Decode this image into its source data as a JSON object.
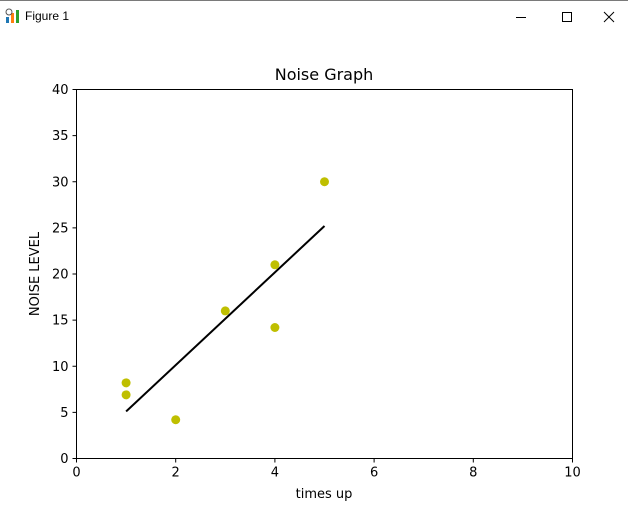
{
  "window": {
    "title": "Figure 1",
    "icon": "matplotlib-figure-icon",
    "controls": [
      "minimize-icon",
      "maximize-icon",
      "close-icon"
    ]
  },
  "chart_data": {
    "type": "scatter",
    "title": "Noise Graph",
    "xlabel": "times up",
    "ylabel": "NOISE LEVEL",
    "xlim": [
      0,
      10
    ],
    "ylim": [
      0,
      40
    ],
    "xticks": [
      0,
      2,
      4,
      6,
      8,
      10
    ],
    "yticks": [
      0,
      5,
      10,
      15,
      20,
      25,
      30,
      35,
      40
    ],
    "grid": false,
    "colors": {
      "points": "#bfbf00",
      "line": "#000000"
    },
    "series": [
      {
        "type": "scatter",
        "x": [
          1,
          1,
          2,
          3,
          4,
          4,
          5
        ],
        "y": [
          8.2,
          6.9,
          4.2,
          16.0,
          21.0,
          14.2,
          30.0
        ]
      },
      {
        "type": "line",
        "x": [
          1,
          5
        ],
        "y": [
          5.1,
          25.2
        ]
      }
    ]
  }
}
